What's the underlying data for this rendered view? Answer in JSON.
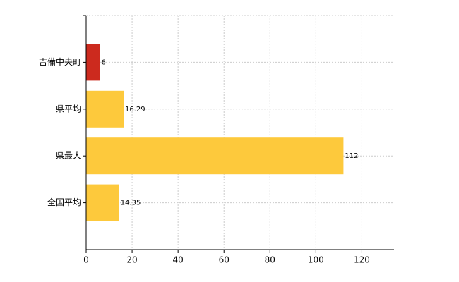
{
  "chart_data": {
    "type": "barh",
    "categories": [
      "吉備中央町",
      "県平均",
      "県最大",
      "全国平均"
    ],
    "values": [
      6,
      16.29,
      112,
      14.35
    ],
    "colors": [
      "#cc2a1e",
      "#fdc93c",
      "#fdc93c",
      "#fdc93c"
    ],
    "xlim": [
      0,
      134
    ],
    "xticks": [
      0,
      20,
      40,
      60,
      80,
      100,
      120
    ],
    "grid": true
  }
}
